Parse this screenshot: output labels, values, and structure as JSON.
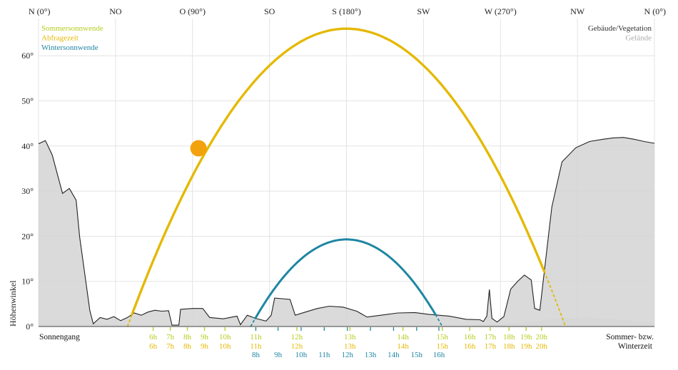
{
  "chart_data": {
    "type": "line",
    "x_axis": {
      "quantity": "azimuth (degrees)",
      "range": [
        0,
        360
      ],
      "ticks": [
        {
          "value": 0,
          "label": "N (0°)"
        },
        {
          "value": 45,
          "label": "NO"
        },
        {
          "value": 90,
          "label": "O (90°)"
        },
        {
          "value": 135,
          "label": "SO"
        },
        {
          "value": 180,
          "label": "S (180°)"
        },
        {
          "value": 225,
          "label": "SW"
        },
        {
          "value": 270,
          "label": "W (270°)"
        },
        {
          "value": 315,
          "label": "NW"
        },
        {
          "value": 360,
          "label": "N (0°)"
        }
      ]
    },
    "y_axis": {
      "ylabel": "Höhenwinkel",
      "range": [
        0,
        67
      ],
      "ticks": [
        {
          "value": 0,
          "label": "0°"
        },
        {
          "value": 10,
          "label": "10°"
        },
        {
          "value": 20,
          "label": "20°"
        },
        {
          "value": 30,
          "label": "30°"
        },
        {
          "value": 40,
          "label": "40°"
        },
        {
          "value": 50,
          "label": "50°"
        },
        {
          "value": 60,
          "label": "60°"
        }
      ]
    },
    "grid": true,
    "series": [
      {
        "name": "Sommersonnwende",
        "color": "#b5cc1e",
        "kind": "sun-path",
        "points": [
          [
            52,
            0
          ],
          [
            90,
            38
          ],
          [
            180,
            66
          ],
          [
            270,
            38
          ],
          [
            308,
            0
          ]
        ]
      },
      {
        "name": "Abfragezeit",
        "color": "#e6b800",
        "kind": "sun-path",
        "points": [
          [
            52,
            0
          ],
          [
            93,
            39
          ],
          [
            180,
            66
          ],
          [
            267,
            39
          ],
          [
            308,
            0
          ]
        ],
        "marker": {
          "azimuth": 93.5,
          "elevation": 39.5
        }
      },
      {
        "name": "Wintersonnwende",
        "color": "#1f86a3",
        "kind": "sun-path",
        "points": [
          [
            124,
            0
          ],
          [
            150,
            13
          ],
          [
            180,
            19.3
          ],
          [
            210,
            13
          ],
          [
            236,
            0
          ]
        ]
      }
    ],
    "horizon": {
      "name": "Gebäude/Vegetation",
      "color": "#222222",
      "fill": "#d4d4d4",
      "points": [
        [
          0,
          40.5
        ],
        [
          4,
          41.2
        ],
        [
          8,
          38
        ],
        [
          14,
          29.5
        ],
        [
          18,
          30.6
        ],
        [
          22,
          28
        ],
        [
          24,
          20
        ],
        [
          30,
          3.5
        ],
        [
          32,
          0.6
        ],
        [
          36,
          2
        ],
        [
          40,
          1.6
        ],
        [
          44,
          2.2
        ],
        [
          48,
          1.3
        ],
        [
          52,
          2
        ],
        [
          56,
          3
        ],
        [
          60,
          2.5
        ],
        [
          64,
          3.2
        ],
        [
          68,
          3.6
        ],
        [
          72,
          3.4
        ],
        [
          76,
          3.5
        ],
        [
          78,
          0.3
        ],
        [
          82,
          0.3
        ],
        [
          83,
          3.8
        ],
        [
          90,
          4
        ],
        [
          96,
          4
        ],
        [
          100,
          2
        ],
        [
          108,
          1.7
        ],
        [
          116,
          2.3
        ],
        [
          118,
          0.4
        ],
        [
          122,
          2.5
        ],
        [
          127,
          1.8
        ],
        [
          133,
          1.2
        ],
        [
          136,
          2.5
        ],
        [
          138,
          6.3
        ],
        [
          147,
          6
        ],
        [
          150,
          2.5
        ],
        [
          156,
          3.2
        ],
        [
          163,
          4
        ],
        [
          170,
          4.5
        ],
        [
          178,
          4.3
        ],
        [
          186,
          3.4
        ],
        [
          192,
          2.1
        ],
        [
          200,
          2.5
        ],
        [
          210,
          3
        ],
        [
          220,
          3.1
        ],
        [
          228,
          2.7
        ],
        [
          240,
          2.3
        ],
        [
          250,
          1.6
        ],
        [
          258,
          1.5
        ],
        [
          260,
          1.1
        ],
        [
          262,
          2.3
        ],
        [
          263.5,
          8.2
        ],
        [
          265,
          1.8
        ],
        [
          268,
          1
        ],
        [
          272,
          2.2
        ],
        [
          276,
          8.3
        ],
        [
          280,
          10
        ],
        [
          284,
          11.4
        ],
        [
          288,
          10.3
        ],
        [
          290,
          4
        ],
        [
          293,
          3.6
        ],
        [
          298,
          20
        ],
        [
          300,
          26.5
        ],
        [
          306,
          36.5
        ],
        [
          314,
          39.6
        ],
        [
          322,
          41
        ],
        [
          330,
          41.5
        ],
        [
          336,
          41.8
        ],
        [
          342,
          41.9
        ],
        [
          348,
          41.5
        ],
        [
          354,
          41
        ],
        [
          360,
          40.6
        ]
      ]
    },
    "terrain": {
      "name": "Gelände",
      "color": "#ebebeb",
      "points": [
        [
          0,
          0.6
        ],
        [
          30,
          0.6
        ],
        [
          80,
          0.4
        ],
        [
          140,
          0.3
        ],
        [
          200,
          0.3
        ],
        [
          250,
          0.3
        ],
        [
          290,
          1.0
        ],
        [
          300,
          1.8
        ],
        [
          320,
          2.0
        ],
        [
          340,
          1.5
        ],
        [
          360,
          0.8
        ]
      ]
    },
    "legend": {
      "placement": "top-left and top-right",
      "left": [
        {
          "label": "Sommersonnwende",
          "color": "#b5cc1e"
        },
        {
          "label": "Abfragezeit",
          "color": "#e6b800"
        },
        {
          "label": "Wintersonnwende",
          "color": "#1f86a3"
        }
      ],
      "right": [
        {
          "label": "Gebäude/Vegetation",
          "color": "#333333"
        },
        {
          "label": "Gelände",
          "color": "#aaaaaa"
        }
      ]
    },
    "bottom_left_label": "Sonnengang",
    "bottom_right_label": [
      "Sommer- bzw.",
      "Winterzeit"
    ],
    "hour_rows": [
      {
        "name": "Sommersonnwende",
        "color": "#b5cc1e",
        "labels": [
          {
            "azimuth": 67,
            "text": "6h"
          },
          {
            "azimuth": 77,
            "text": "7h"
          },
          {
            "azimuth": 87,
            "text": "8h"
          },
          {
            "azimuth": 97,
            "text": "9h"
          },
          {
            "azimuth": 109,
            "text": "10h"
          },
          {
            "azimuth": 127,
            "text": "11h"
          },
          {
            "azimuth": 151,
            "text": "12h"
          },
          {
            "azimuth": 182,
            "text": "13h"
          },
          {
            "azimuth": 213,
            "text": "14h"
          },
          {
            "azimuth": 236,
            "text": "15h"
          },
          {
            "azimuth": 252,
            "text": "16h"
          },
          {
            "azimuth": 264,
            "text": "17h"
          },
          {
            "azimuth": 275,
            "text": "18h"
          },
          {
            "azimuth": 285,
            "text": "19h"
          },
          {
            "azimuth": 294,
            "text": "20h"
          }
        ]
      },
      {
        "name": "Abfragezeit",
        "color": "#e6b800",
        "labels": [
          {
            "azimuth": 67,
            "text": "6h"
          },
          {
            "azimuth": 77,
            "text": "7h"
          },
          {
            "azimuth": 87,
            "text": "8h"
          },
          {
            "azimuth": 97,
            "text": "9h"
          },
          {
            "azimuth": 109,
            "text": "10h"
          },
          {
            "azimuth": 127,
            "text": "11h"
          },
          {
            "azimuth": 151,
            "text": "12h"
          },
          {
            "azimuth": 182,
            "text": "13h"
          },
          {
            "azimuth": 213,
            "text": "14h"
          },
          {
            "azimuth": 236,
            "text": "15h"
          },
          {
            "azimuth": 252,
            "text": "16h"
          },
          {
            "azimuth": 264,
            "text": "17h"
          },
          {
            "azimuth": 275,
            "text": "18h"
          },
          {
            "azimuth": 285,
            "text": "19h"
          },
          {
            "azimuth": 294,
            "text": "20h"
          }
        ]
      },
      {
        "name": "Wintersonnwende",
        "color": "#1f86a3",
        "labels": [
          {
            "azimuth": 127,
            "text": "8h"
          },
          {
            "azimuth": 140,
            "text": "9h"
          },
          {
            "azimuth": 153.5,
            "text": "10h"
          },
          {
            "azimuth": 167,
            "text": "11h"
          },
          {
            "azimuth": 180.5,
            "text": "12h"
          },
          {
            "azimuth": 194,
            "text": "13h"
          },
          {
            "azimuth": 207.5,
            "text": "14h"
          },
          {
            "azimuth": 221,
            "text": "15h"
          },
          {
            "azimuth": 234,
            "text": "16h"
          }
        ]
      }
    ]
  }
}
